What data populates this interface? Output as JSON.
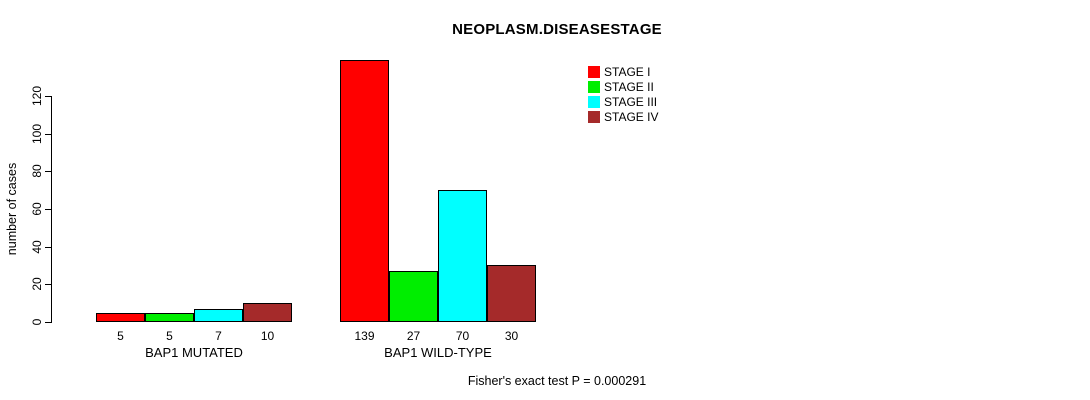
{
  "chart": {
    "title": "NEOPLASM.DISEASESTAGE",
    "y_axis_label": "number of cases",
    "footer": "Fisher's exact test P = 0.000291"
  },
  "chart_data": {
    "type": "bar",
    "title": "NEOPLASM.DISEASESTAGE",
    "categories": [
      "BAP1 MUTATED",
      "BAP1 WILD-TYPE"
    ],
    "series": [
      {
        "name": "STAGE I",
        "color": "#FF0000",
        "values": [
          5,
          139
        ]
      },
      {
        "name": "STAGE II",
        "color": "#00EE00",
        "values": [
          5,
          27
        ]
      },
      {
        "name": "STAGE III",
        "color": "#00FFFF",
        "values": [
          7,
          70
        ]
      },
      {
        "name": "STAGE IV",
        "color": "#A52A2A",
        "values": [
          10,
          30
        ]
      }
    ],
    "bar_value_labels": [
      [
        5,
        5,
        7,
        10
      ],
      [
        139,
        27,
        70,
        30
      ]
    ],
    "xlabel": "",
    "ylabel": "number of cases",
    "ylim": [
      0,
      120
    ],
    "y_ticks": [
      0,
      20,
      40,
      60,
      80,
      100,
      120
    ],
    "legend": [
      "STAGE I",
      "STAGE II",
      "STAGE III",
      "STAGE IV"
    ],
    "legend_position": "top-right",
    "grid": false,
    "annotation": "Fisher's exact test P = 0.000291"
  }
}
